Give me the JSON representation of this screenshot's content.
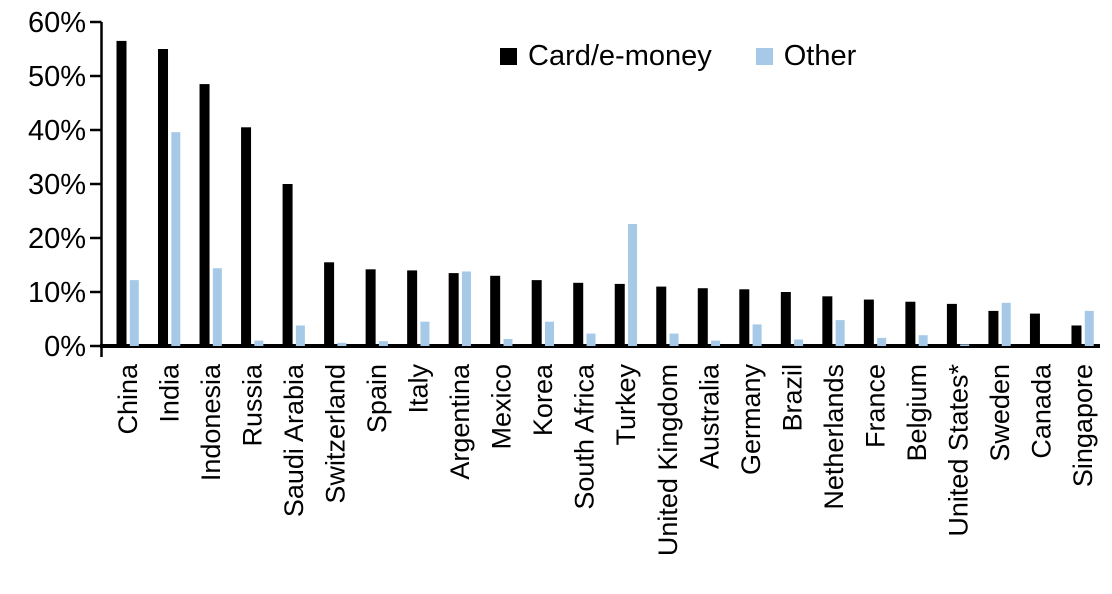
{
  "chart_data": {
    "type": "bar",
    "title": "",
    "xlabel": "",
    "ylabel": "",
    "ylim": [
      0,
      60
    ],
    "ytick_step": 10,
    "yticks": [
      "0%",
      "10%",
      "20%",
      "30%",
      "40%",
      "50%",
      "60%"
    ],
    "grid": false,
    "legend_position": "top",
    "categories": [
      "China",
      "India",
      "Indonesia",
      "Russia",
      "Saudi Arabia",
      "Switzerland",
      "Spain",
      "Italy",
      "Argentina",
      "Mexico",
      "Korea",
      "South Africa",
      "Turkey",
      "United Kingdom",
      "Australia",
      "Germany",
      "Brazil",
      "Netherlands",
      "France",
      "Belgium",
      "United States*",
      "Sweden",
      "Canada",
      "Singapore"
    ],
    "series": [
      {
        "name": "Card/e-money",
        "color": "#000000",
        "values": [
          56.5,
          55.0,
          48.5,
          40.5,
          30.0,
          15.5,
          14.2,
          14.0,
          13.5,
          13.0,
          12.2,
          11.7,
          11.5,
          11.0,
          10.7,
          10.5,
          10.0,
          9.2,
          8.6,
          8.2,
          7.8,
          6.5,
          6.0,
          3.8
        ]
      },
      {
        "name": "Other",
        "color": "#A7C9E8",
        "values": [
          12.2,
          39.6,
          14.4,
          1.0,
          3.8,
          0.6,
          0.9,
          4.5,
          13.8,
          1.3,
          4.5,
          2.3,
          22.6,
          2.3,
          1.0,
          4.0,
          1.2,
          4.8,
          1.5,
          2.0,
          0.3,
          8.0,
          0.0,
          6.5
        ]
      }
    ]
  }
}
